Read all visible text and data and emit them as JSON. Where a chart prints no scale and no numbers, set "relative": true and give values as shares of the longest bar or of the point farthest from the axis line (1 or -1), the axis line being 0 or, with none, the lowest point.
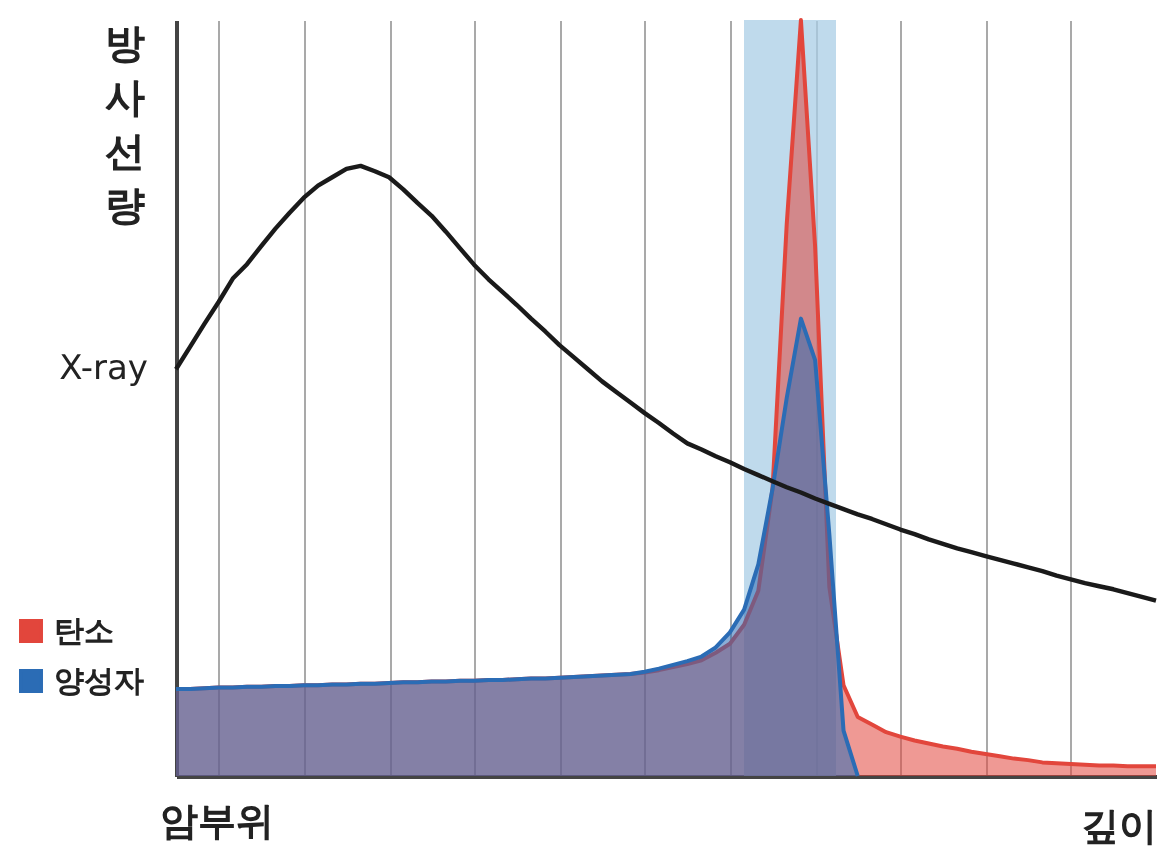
{
  "chart_data": {
    "type": "area",
    "relative": true,
    "ylabel": "방사선량",
    "xlabel": "깊이",
    "annotations": [
      "암부위"
    ],
    "categories": [
      null,
      null,
      null,
      null,
      null,
      null,
      null,
      null,
      null,
      null,
      null,
      null,
      null,
      null,
      null,
      null,
      null,
      null,
      null,
      null,
      null,
      null,
      null,
      null,
      null,
      null,
      null,
      null,
      null,
      null,
      null,
      null,
      null,
      null,
      null,
      null,
      null,
      null,
      null,
      null,
      null,
      null,
      null,
      null,
      null,
      null,
      null,
      null,
      null,
      null,
      null,
      null,
      null,
      null,
      null,
      null,
      null,
      null,
      null,
      null,
      null,
      null,
      null,
      null,
      null,
      null,
      null,
      null,
      null,
      null
    ],
    "grid": "x",
    "legend": "bottom left",
    "series": [
      {
        "name": "탄소",
        "color": "#e2463c",
        "values": [
          0.115,
          0.115,
          0.116,
          0.117,
          0.117,
          0.118,
          0.118,
          0.119,
          0.119,
          0.12,
          0.12,
          0.121,
          0.121,
          0.122,
          0.122,
          0.123,
          0.124,
          0.124,
          0.125,
          0.125,
          0.126,
          0.126,
          0.127,
          0.127,
          0.128,
          0.129,
          0.129,
          0.13,
          0.131,
          0.132,
          0.133,
          0.134,
          0.135,
          0.137,
          0.14,
          0.144,
          0.148,
          0.153,
          0.163,
          0.175,
          0.2,
          0.245,
          0.38,
          0.73,
          1.0,
          0.7,
          0.25,
          0.12,
          0.078,
          0.068,
          0.058,
          0.052,
          0.047,
          0.043,
          0.039,
          0.036,
          0.032,
          0.029,
          0.026,
          0.023,
          0.021,
          0.018,
          0.017,
          0.016,
          0.015,
          0.014,
          0.014,
          0.013,
          0.013,
          0.013
        ]
      },
      {
        "name": "양성자",
        "color": "#2b6cb5",
        "values": [
          0.115,
          0.115,
          0.116,
          0.117,
          0.117,
          0.118,
          0.118,
          0.119,
          0.119,
          0.12,
          0.12,
          0.121,
          0.121,
          0.122,
          0.122,
          0.123,
          0.124,
          0.124,
          0.125,
          0.125,
          0.126,
          0.126,
          0.127,
          0.127,
          0.128,
          0.129,
          0.129,
          0.13,
          0.131,
          0.132,
          0.133,
          0.134,
          0.135,
          0.138,
          0.142,
          0.147,
          0.152,
          0.158,
          0.17,
          0.19,
          0.22,
          0.28,
          0.38,
          0.5,
          0.605,
          0.55,
          0.32,
          0.06,
          0,
          null,
          null,
          null,
          null,
          null,
          null,
          null,
          null,
          null,
          null,
          null,
          null,
          null,
          null,
          null,
          null,
          null,
          null,
          null,
          null,
          null
        ]
      },
      {
        "name": "X-ray",
        "type": "line",
        "color": "#1a1a1a",
        "values": [
          0.538,
          0.568,
          0.598,
          0.627,
          0.658,
          0.677,
          0.701,
          0.724,
          0.745,
          0.765,
          0.781,
          0.792,
          0.803,
          0.807,
          0.8,
          0.792,
          0.776,
          0.758,
          0.741,
          0.72,
          0.698,
          0.676,
          0.657,
          0.64,
          0.623,
          0.605,
          0.588,
          0.57,
          0.554,
          0.538,
          0.522,
          0.508,
          0.494,
          0.48,
          0.467,
          0.453,
          0.44,
          0.432,
          0.423,
          0.415,
          0.406,
          0.398,
          0.39,
          0.382,
          0.375,
          0.367,
          0.36,
          0.353,
          0.346,
          0.34,
          0.333,
          0.326,
          0.32,
          0.313,
          0.307,
          0.301,
          0.296,
          0.291,
          0.286,
          0.281,
          0.276,
          0.271,
          0.265,
          0.26,
          0.255,
          0.251,
          0.247,
          0.242,
          0.237,
          0.232
        ]
      }
    ]
  }
}
